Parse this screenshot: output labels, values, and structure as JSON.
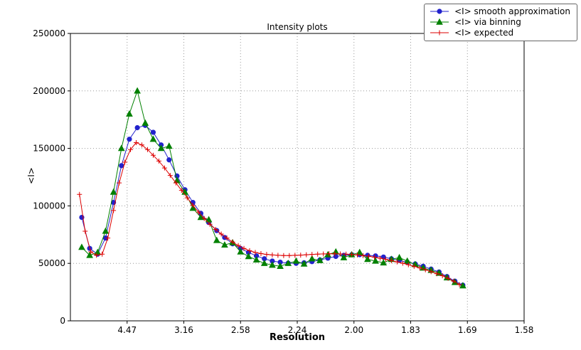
{
  "chart_data": {
    "type": "line",
    "title": "Intensity plots",
    "xlabel": "Resolution",
    "ylabel": "<I>",
    "x_scale": "1/d^2 (tick labels show d-spacing)",
    "xlim": [
      0,
      0.4
    ],
    "ylim": [
      0,
      250000
    ],
    "grid": true,
    "legend_position": "upper-right",
    "x_ticks": [
      {
        "pos": 0.05,
        "label": "4.47"
      },
      {
        "pos": 0.1,
        "label": "3.16"
      },
      {
        "pos": 0.15,
        "label": "2.58"
      },
      {
        "pos": 0.2,
        "label": "2.24"
      },
      {
        "pos": 0.25,
        "label": "2.00"
      },
      {
        "pos": 0.3,
        "label": "1.83"
      },
      {
        "pos": 0.35,
        "label": "1.69"
      },
      {
        "pos": 0.4,
        "label": "1.58"
      }
    ],
    "y_ticks": [
      {
        "pos": 0,
        "label": "0"
      },
      {
        "pos": 50000,
        "label": "50000"
      },
      {
        "pos": 100000,
        "label": "100000"
      },
      {
        "pos": 150000,
        "label": "150000"
      },
      {
        "pos": 200000,
        "label": "200000"
      },
      {
        "pos": 250000,
        "label": "250000"
      }
    ],
    "series": [
      {
        "name": "<I> smooth approximation",
        "color": "#2222cc",
        "marker": "circle",
        "points": [
          [
            0.01,
            90000
          ],
          [
            0.017,
            63000
          ],
          [
            0.024,
            58000
          ],
          [
            0.031,
            72000
          ],
          [
            0.038,
            103000
          ],
          [
            0.045,
            135000
          ],
          [
            0.052,
            158000
          ],
          [
            0.059,
            168000
          ],
          [
            0.066,
            170000
          ],
          [
            0.073,
            164000
          ],
          [
            0.08,
            153000
          ],
          [
            0.087,
            140000
          ],
          [
            0.094,
            126000
          ],
          [
            0.101,
            114000
          ],
          [
            0.108,
            103000
          ],
          [
            0.115,
            93500
          ],
          [
            0.122,
            85500
          ],
          [
            0.129,
            78500
          ],
          [
            0.136,
            72500
          ],
          [
            0.143,
            67000
          ],
          [
            0.15,
            63000
          ],
          [
            0.157,
            59500
          ],
          [
            0.164,
            56500
          ],
          [
            0.171,
            54000
          ],
          [
            0.178,
            52000
          ],
          [
            0.185,
            51000
          ],
          [
            0.192,
            50200
          ],
          [
            0.199,
            50000
          ],
          [
            0.206,
            50500
          ],
          [
            0.213,
            51500
          ],
          [
            0.22,
            53000
          ],
          [
            0.227,
            54500
          ],
          [
            0.234,
            56000
          ],
          [
            0.241,
            57000
          ],
          [
            0.248,
            57500
          ],
          [
            0.255,
            57500
          ],
          [
            0.262,
            57000
          ],
          [
            0.269,
            56500
          ],
          [
            0.276,
            55500
          ],
          [
            0.283,
            54000
          ],
          [
            0.29,
            52500
          ],
          [
            0.297,
            51000
          ],
          [
            0.304,
            49500
          ],
          [
            0.311,
            47500
          ],
          [
            0.318,
            45000
          ],
          [
            0.325,
            42500
          ],
          [
            0.332,
            38500
          ],
          [
            0.339,
            34500
          ],
          [
            0.346,
            31000
          ]
        ]
      },
      {
        "name": "<I> via binning",
        "color": "#008000",
        "marker": "triangle",
        "points": [
          [
            0.01,
            64000
          ],
          [
            0.017,
            57000
          ],
          [
            0.024,
            59500
          ],
          [
            0.031,
            78000
          ],
          [
            0.038,
            112000
          ],
          [
            0.045,
            150000
          ],
          [
            0.052,
            180000
          ],
          [
            0.059,
            200000
          ],
          [
            0.066,
            172000
          ],
          [
            0.073,
            158000
          ],
          [
            0.08,
            150000
          ],
          [
            0.087,
            152000
          ],
          [
            0.094,
            122000
          ],
          [
            0.101,
            112000
          ],
          [
            0.108,
            98000
          ],
          [
            0.115,
            90000
          ],
          [
            0.122,
            88000
          ],
          [
            0.129,
            70000
          ],
          [
            0.136,
            66000
          ],
          [
            0.143,
            68000
          ],
          [
            0.15,
            60000
          ],
          [
            0.157,
            56000
          ],
          [
            0.164,
            53000
          ],
          [
            0.171,
            50000
          ],
          [
            0.178,
            48500
          ],
          [
            0.185,
            47500
          ],
          [
            0.192,
            50000
          ],
          [
            0.199,
            52000
          ],
          [
            0.206,
            49500
          ],
          [
            0.213,
            54000
          ],
          [
            0.22,
            52500
          ],
          [
            0.227,
            57500
          ],
          [
            0.234,
            60000
          ],
          [
            0.241,
            55000
          ],
          [
            0.248,
            57500
          ],
          [
            0.255,
            59500
          ],
          [
            0.262,
            53500
          ],
          [
            0.269,
            52000
          ],
          [
            0.276,
            50500
          ],
          [
            0.283,
            53500
          ],
          [
            0.29,
            55000
          ],
          [
            0.297,
            52000
          ],
          [
            0.304,
            49000
          ],
          [
            0.311,
            46000
          ],
          [
            0.318,
            44000
          ],
          [
            0.325,
            41500
          ],
          [
            0.332,
            37500
          ],
          [
            0.339,
            33500
          ],
          [
            0.346,
            30500
          ]
        ]
      },
      {
        "name": "<I> expected",
        "color": "#dd0000",
        "marker": "plus",
        "points": [
          [
            0.008,
            110000
          ],
          [
            0.013,
            78000
          ],
          [
            0.018,
            60000
          ],
          [
            0.023,
            57000
          ],
          [
            0.028,
            58000
          ],
          [
            0.033,
            72000
          ],
          [
            0.038,
            96000
          ],
          [
            0.043,
            120000
          ],
          [
            0.048,
            138000
          ],
          [
            0.053,
            149000
          ],
          [
            0.058,
            155000
          ],
          [
            0.063,
            153000
          ],
          [
            0.068,
            149000
          ],
          [
            0.073,
            144000
          ],
          [
            0.078,
            139000
          ],
          [
            0.083,
            133000
          ],
          [
            0.088,
            126500
          ],
          [
            0.093,
            120000
          ],
          [
            0.098,
            113500
          ],
          [
            0.103,
            107000
          ],
          [
            0.108,
            100500
          ],
          [
            0.113,
            94500
          ],
          [
            0.118,
            89000
          ],
          [
            0.123,
            84000
          ],
          [
            0.128,
            79500
          ],
          [
            0.133,
            75500
          ],
          [
            0.138,
            72000
          ],
          [
            0.143,
            68500
          ],
          [
            0.148,
            65500
          ],
          [
            0.153,
            63000
          ],
          [
            0.158,
            61000
          ],
          [
            0.163,
            59500
          ],
          [
            0.168,
            58500
          ],
          [
            0.173,
            57800
          ],
          [
            0.178,
            57300
          ],
          [
            0.183,
            57000
          ],
          [
            0.188,
            56800
          ],
          [
            0.193,
            56800
          ],
          [
            0.198,
            57000
          ],
          [
            0.203,
            57200
          ],
          [
            0.208,
            57500
          ],
          [
            0.213,
            57800
          ],
          [
            0.218,
            58000
          ],
          [
            0.223,
            58200
          ],
          [
            0.228,
            58300
          ],
          [
            0.233,
            58300
          ],
          [
            0.238,
            58200
          ],
          [
            0.243,
            58000
          ],
          [
            0.248,
            57700
          ],
          [
            0.253,
            57300
          ],
          [
            0.258,
            56800
          ],
          [
            0.263,
            56200
          ],
          [
            0.268,
            55400
          ],
          [
            0.273,
            54500
          ],
          [
            0.278,
            53500
          ],
          [
            0.283,
            52400
          ],
          [
            0.288,
            51300
          ],
          [
            0.293,
            50100
          ],
          [
            0.298,
            48800
          ],
          [
            0.303,
            47400
          ],
          [
            0.308,
            46000
          ],
          [
            0.313,
            44400
          ],
          [
            0.318,
            42800
          ],
          [
            0.323,
            41000
          ],
          [
            0.328,
            39200
          ],
          [
            0.333,
            37000
          ],
          [
            0.338,
            34500
          ],
          [
            0.343,
            31500
          ]
        ]
      }
    ]
  }
}
